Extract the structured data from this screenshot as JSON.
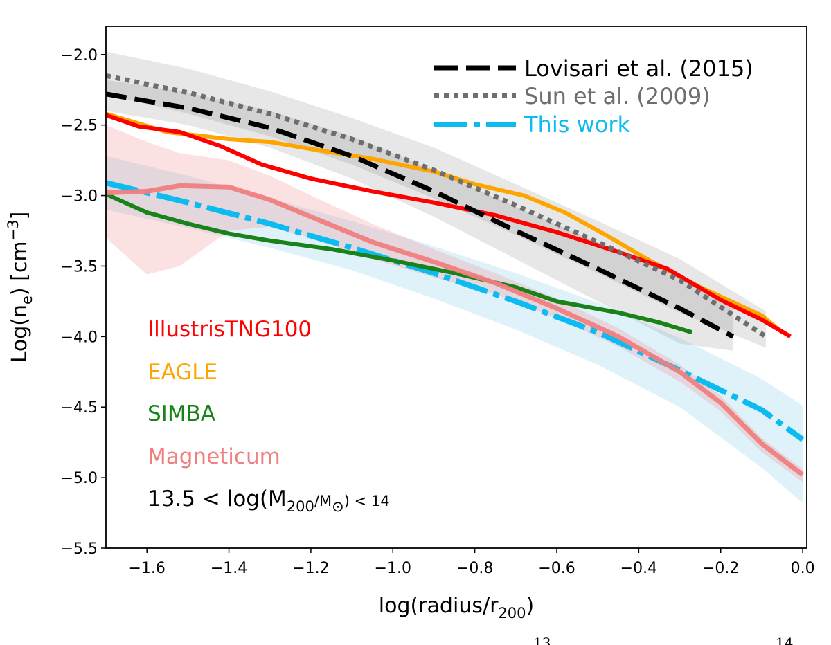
{
  "chart_data": {
    "type": "line",
    "title": "",
    "xlabel": "log(radius/r200)",
    "ylabel": "Log(ne) [cm^-3]",
    "xlim": [
      -1.7,
      0.01
    ],
    "ylim": [
      -5.5,
      -1.8
    ],
    "x_ticks": [
      -1.6,
      -1.4,
      -1.2,
      -1.0,
      -0.8,
      -0.6,
      -0.4,
      -0.2,
      0.0
    ],
    "x_tick_labels": [
      "−1.6",
      "−1.4",
      "−1.2",
      "−1.0",
      "−0.8",
      "−0.6",
      "−0.4",
      "−0.2",
      "0.0"
    ],
    "y_ticks": [
      -2.0,
      -2.5,
      -3.0,
      -3.5,
      -4.0,
      -4.5,
      -5.0,
      -5.5
    ],
    "y_tick_labels": [
      "−2.0",
      "−2.5",
      "−3.0",
      "−3.5",
      "−4.0",
      "−4.5",
      "−5.0",
      "−5.5"
    ],
    "legend_position": "top-right",
    "legend": [
      "Lovisari et al. (2015)",
      "Sun et al. (2009)",
      "This work"
    ],
    "annotations": [
      "IllustrisTNG100",
      "EAGLE",
      "SIMBA",
      "Magneticum",
      "13.5 < log(M200/M⊙) < 14"
    ],
    "series": [
      {
        "name": "Lovisari et al. (2015)",
        "color": "#000000",
        "style": "dashed",
        "x": [
          -1.7,
          -1.5,
          -1.3,
          -1.1,
          -0.9,
          -0.7,
          -0.5,
          -0.3,
          -0.17
        ],
        "y": [
          -2.28,
          -2.38,
          -2.52,
          -2.72,
          -2.97,
          -3.25,
          -3.52,
          -3.8,
          -4.0
        ],
        "band_upper": [
          -2.18,
          -2.27,
          -2.4,
          -2.58,
          -2.82,
          -3.08,
          -3.33,
          -3.58,
          -3.78
        ],
        "band_lower": [
          -2.4,
          -2.5,
          -2.66,
          -2.88,
          -3.15,
          -3.45,
          -3.75,
          -4.05,
          -4.1
        ]
      },
      {
        "name": "Sun et al. (2009)",
        "color": "#6e6e6e",
        "style": "dotted",
        "x": [
          -1.7,
          -1.5,
          -1.3,
          -1.1,
          -0.9,
          -0.7,
          -0.5,
          -0.3,
          -0.09
        ],
        "y": [
          -2.15,
          -2.27,
          -2.42,
          -2.6,
          -2.82,
          -3.07,
          -3.33,
          -3.6,
          -4.0
        ],
        "band_upper": [
          -1.98,
          -2.1,
          -2.26,
          -2.45,
          -2.66,
          -2.92,
          -3.18,
          -3.45,
          -3.82
        ],
        "band_lower": [
          -2.28,
          -2.42,
          -2.58,
          -2.78,
          -3.02,
          -3.28,
          -3.55,
          -3.83,
          -4.08
        ]
      },
      {
        "name": "This work",
        "color": "#0cbbf0",
        "style": "dashdot",
        "x": [
          -1.7,
          -1.5,
          -1.3,
          -1.1,
          -0.9,
          -0.7,
          -0.5,
          -0.3,
          -0.1,
          0.0
        ],
        "y": [
          -2.91,
          -3.05,
          -3.2,
          -3.37,
          -3.55,
          -3.75,
          -3.97,
          -4.24,
          -4.52,
          -4.73
        ],
        "band_upper": [
          -2.72,
          -2.86,
          -3.02,
          -3.18,
          -3.36,
          -3.55,
          -3.76,
          -4.01,
          -4.3,
          -4.49
        ],
        "band_lower": [
          -3.1,
          -3.23,
          -3.37,
          -3.53,
          -3.73,
          -3.95,
          -4.2,
          -4.5,
          -4.93,
          -5.18
        ]
      },
      {
        "name": "IllustrisTNG100",
        "color": "#ff0000",
        "style": "solid",
        "x": [
          -1.7,
          -1.62,
          -1.52,
          -1.42,
          -1.32,
          -1.2,
          -1.05,
          -0.9,
          -0.75,
          -0.6,
          -0.45,
          -0.33,
          -0.2,
          -0.1,
          -0.03
        ],
        "y": [
          -2.43,
          -2.51,
          -2.55,
          -2.65,
          -2.78,
          -2.88,
          -2.97,
          -3.05,
          -3.14,
          -3.26,
          -3.4,
          -3.52,
          -3.74,
          -3.88,
          -4.0
        ]
      },
      {
        "name": "EAGLE",
        "color": "#ffa500",
        "style": "solid",
        "x": [
          -1.7,
          -1.55,
          -1.4,
          -1.3,
          -1.2,
          -1.05,
          -0.9,
          -0.8,
          -0.68,
          -0.58,
          -0.48,
          -0.38,
          -0.25,
          -0.1,
          -0.05
        ],
        "y": [
          -2.42,
          -2.55,
          -2.6,
          -2.62,
          -2.67,
          -2.74,
          -2.83,
          -2.92,
          -3.0,
          -3.12,
          -3.28,
          -3.45,
          -3.65,
          -3.85,
          -3.97
        ]
      },
      {
        "name": "SIMBA",
        "color": "#198219",
        "style": "solid",
        "x": [
          -1.7,
          -1.6,
          -1.5,
          -1.4,
          -1.3,
          -1.15,
          -1.0,
          -0.85,
          -0.7,
          -0.6,
          -0.45,
          -0.35,
          -0.27
        ],
        "y": [
          -2.99,
          -3.12,
          -3.2,
          -3.27,
          -3.32,
          -3.38,
          -3.46,
          -3.55,
          -3.65,
          -3.75,
          -3.83,
          -3.9,
          -3.97
        ]
      },
      {
        "name": "Magneticum",
        "color": "#f08080",
        "style": "solid",
        "x": [
          -1.7,
          -1.6,
          -1.52,
          -1.4,
          -1.3,
          -1.2,
          -1.05,
          -0.9,
          -0.75,
          -0.6,
          -0.45,
          -0.3,
          -0.2,
          -0.1,
          0.0
        ],
        "y": [
          -2.98,
          -2.97,
          -2.93,
          -2.94,
          -3.03,
          -3.15,
          -3.33,
          -3.47,
          -3.62,
          -3.8,
          -4.0,
          -4.25,
          -4.47,
          -4.76,
          -4.98
        ],
        "band_upper": [
          -2.5,
          -2.62,
          -2.7,
          -2.75,
          -2.86,
          -3.0,
          -3.2,
          -3.38,
          -3.55,
          -3.73,
          -3.94,
          -4.2,
          -4.42,
          -4.72,
          -4.94
        ],
        "band_lower": [
          -3.3,
          -3.56,
          -3.5,
          -3.25,
          -3.22,
          -3.3,
          -3.45,
          -3.58,
          -3.7,
          -3.87,
          -4.07,
          -4.32,
          -4.53,
          -4.82,
          -5.03
        ]
      }
    ]
  }
}
